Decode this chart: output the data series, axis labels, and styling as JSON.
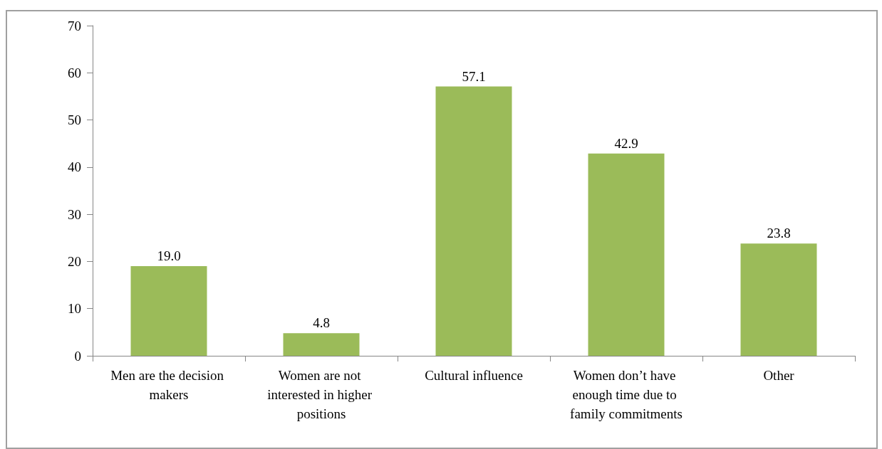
{
  "chart_data": {
    "type": "bar",
    "categories": [
      "Men are the decision makers",
      "Women are not interested in higher positions",
      "Cultural influence",
      "Women don’t have enough time due to family commitments",
      "Other"
    ],
    "values": [
      19.0,
      4.8,
      57.1,
      42.9,
      23.8
    ],
    "value_labels": [
      "19.0",
      "4.8",
      "57.1",
      "42.9",
      "23.8"
    ],
    "color": "#9bbb59",
    "ylim": [
      0,
      70
    ],
    "yticks": [
      0,
      10,
      20,
      30,
      40,
      50,
      60,
      70
    ],
    "grid": false
  }
}
